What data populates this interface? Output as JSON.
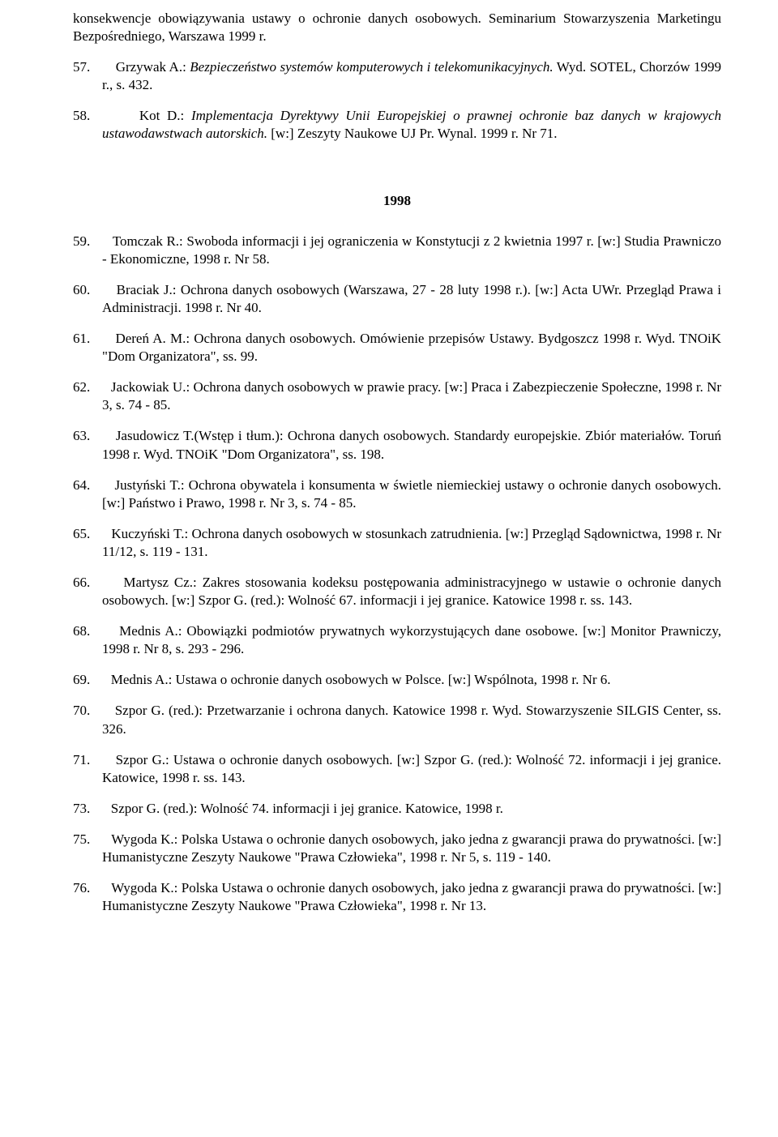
{
  "top_fragment": {
    "text_a": "konsekwencje obowiązywania ustawy o ochronie danych osobowych. Seminarium Stowarzyszenia Marketingu Bezpośredniego, Warszawa 1999 r."
  },
  "entries_before": [
    {
      "num": "57.",
      "plain_a": "Grzywak A.: ",
      "italic_a": "Bezpieczeństwo systemów komputerowych i telekomunikacyjnych.",
      "plain_b": " Wyd. SOTEL, Chorzów 1999 r., s. 432."
    },
    {
      "num": "58.",
      "plain_a": "Kot D.: ",
      "italic_a": "Implementacja Dyrektywy Unii Europejskiej o prawnej ochronie baz danych w krajowych ustawodawstwach autorskich.",
      "plain_b": " [w:] Zeszyty Naukowe UJ Pr. Wynal. 1999 r. Nr 71."
    }
  ],
  "year_heading": "1998",
  "entries_after": [
    {
      "num": "59.",
      "text": "Tomczak R.: Swoboda informacji i jej ograniczenia w Konstytucji z 2 kwietnia 1997 r. [w:] Studia Prawniczo - Ekonomiczne, 1998 r. Nr 58."
    },
    {
      "num": "60.",
      "text": "Braciak J.: Ochrona danych osobowych (Warszawa, 27 - 28 luty 1998 r.). [w:] Acta UWr. Przegląd Prawa i Administracji. 1998 r. Nr 40."
    },
    {
      "num": "61.",
      "text": "Dereń A. M.: Ochrona danych osobowych. Omówienie przepisów Ustawy. Bydgoszcz 1998 r. Wyd. TNOiK \"Dom Organizatora\", ss. 99."
    },
    {
      "num": "62.",
      "text": "Jackowiak U.: Ochrona danych osobowych w prawie pracy. [w:] Praca i Zabezpieczenie Społeczne, 1998 r. Nr 3, s. 74 - 85."
    },
    {
      "num": "63.",
      "text": "Jasudowicz T.(Wstęp i tłum.): Ochrona danych osobowych. Standardy europejskie. Zbiór materiałów. Toruń 1998 r. Wyd. TNOiK \"Dom Organizatora\", ss. 198."
    },
    {
      "num": "64.",
      "text": "Justyński T.: Ochrona obywatela i konsumenta w świetle niemieckiej ustawy o ochronie danych osobowych. [w:] Państwo i Prawo, 1998 r. Nr 3, s. 74 - 85."
    },
    {
      "num": "65.",
      "text": "Kuczyński T.: Ochrona danych osobowych w stosunkach zatrudnienia. [w:] Przegląd Sądownictwa, 1998 r. Nr 11/12, s. 119 - 131."
    },
    {
      "num": "66.",
      "text": "Martysz Cz.: Zakres stosowania kodeksu postępowania administracyjnego w ustawie o ochronie danych osobowych. [w:] Szpor G. (red.): Wolność 67.         informacji i jej granice. Katowice 1998 r. ss. 143."
    },
    {
      "num": "68.",
      "text": "Mednis A.: Obowiązki podmiotów prywatnych wykorzystujących dane osobowe. [w:] Monitor Prawniczy, 1998 r. Nr 8, s. 293 - 296."
    },
    {
      "num": "69.",
      "text": "Mednis A.: Ustawa o ochronie danych osobowych w Polsce. [w:] Wspólnota, 1998 r. Nr 6."
    },
    {
      "num": "70.",
      "text": "Szpor G. (red.): Przetwarzanie i ochrona danych. Katowice 1998 r. Wyd. Stowarzyszenie SILGIS Center, ss. 326."
    },
    {
      "num": "71.",
      "text": "Szpor G.: Ustawa o ochronie danych osobowych. [w:] Szpor G. (red.): Wolność 72. informacji i jej granice. Katowice, 1998 r. ss. 143."
    },
    {
      "num": "73.",
      "text": "Szpor G. (red.): Wolność 74.          informacji i jej granice. Katowice, 1998 r."
    },
    {
      "num": "75.",
      "text": "Wygoda K.: Polska Ustawa o ochronie danych osobowych, jako jedna z gwarancji prawa do prywatności. [w:] Humanistyczne Zeszyty Naukowe \"Prawa Człowieka\", 1998 r. Nr 5, s. 119 - 140."
    },
    {
      "num": "76.",
      "text": "Wygoda K.: Polska Ustawa o ochronie danych osobowych, jako jedna z gwarancji prawa do prywatności. [w:] Humanistyczne Zeszyty Naukowe \"Prawa Człowieka\", 1998 r. Nr 13."
    }
  ]
}
